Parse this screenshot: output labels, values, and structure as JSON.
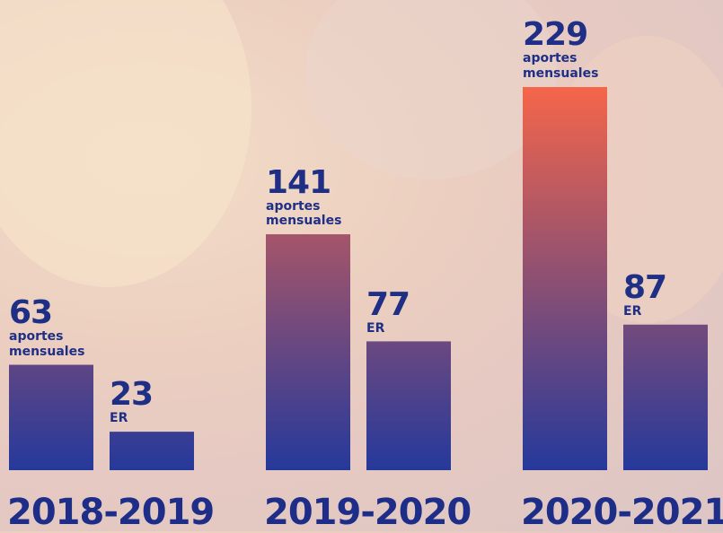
{
  "chart_data": {
    "type": "bar",
    "categories": [
      "2018-2019",
      "2019-2020",
      "2020-2021"
    ],
    "series": [
      {
        "name": "aportes mensuales",
        "values": [
          63,
          141,
          229
        ]
      },
      {
        "name": "ER",
        "values": [
          23,
          77,
          87
        ]
      }
    ],
    "gradient": {
      "top": "#f5664a",
      "bottom": "#25399b"
    }
  }
}
